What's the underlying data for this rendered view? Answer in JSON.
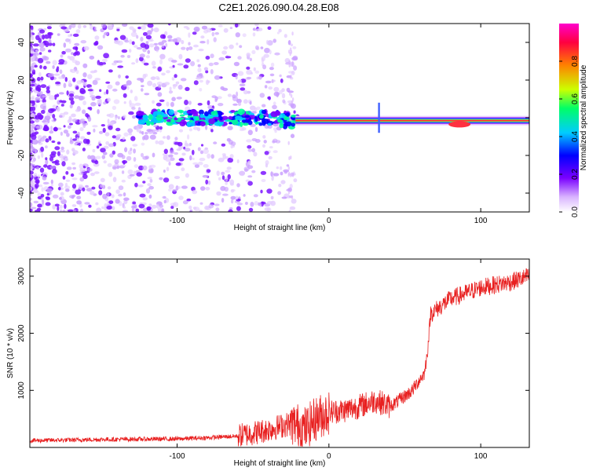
{
  "title": "C2E1.2026.090.04.28.E08",
  "chart_data": [
    {
      "type": "heatmap",
      "xlabel": "Height of straight line (km)",
      "ylabel": "Frequency (Hz)",
      "xlim": [
        -197,
        132
      ],
      "ylim": [
        -50,
        50
      ],
      "xticks": [
        -100,
        0,
        100
      ],
      "yticks": [
        -40,
        -20,
        0,
        20,
        40
      ],
      "colorbar": {
        "label": "Normalized spectral amplitude",
        "range": [
          0,
          1
        ],
        "ticks": [
          0.0,
          0.2,
          0.4,
          0.6,
          0.8
        ],
        "tick_labels": [
          "0.0",
          "0.2",
          "0.4",
          "0.6",
          "0.8"
        ],
        "colors": [
          "#ffffff",
          "#d9b3ff",
          "#7a00ff",
          "#0000ff",
          "#00ccff",
          "#00ff66",
          "#ccff00",
          "#ff8000",
          "#ff0040",
          "#ff00cc"
        ]
      },
      "features": [
        {
          "name": "scattered noise",
          "x_range": [
            -197,
            -25
          ],
          "freq_range": [
            -50,
            50
          ],
          "amplitude": 0.15
        },
        {
          "name": "carrier band",
          "x_range": [
            -125,
            132
          ],
          "center_freq": -2,
          "amplitude": 0.9
        },
        {
          "name": "spike",
          "x": 33,
          "freq_range": [
            -8,
            8
          ],
          "amplitude": 0.3
        }
      ]
    },
    {
      "type": "line",
      "xlabel": "Height of straight line (km)",
      "ylabel": "SNR (10 * v/v)",
      "xlim": [
        -197,
        132
      ],
      "ylim": [
        0,
        3300
      ],
      "xticks": [
        -100,
        0,
        100
      ],
      "yticks": [
        1000,
        2000,
        3000
      ],
      "series": [
        {
          "name": "SNR",
          "color": "#e82020",
          "x": [
            -197,
            -150,
            -100,
            -80,
            -60,
            -45,
            -35,
            -25,
            -20,
            -15,
            -10,
            -5,
            0,
            10,
            20,
            30,
            35,
            40,
            45,
            50,
            55,
            60,
            63,
            65,
            67,
            70,
            80,
            90,
            100,
            110,
            120,
            132
          ],
          "y": [
            120,
            140,
            150,
            170,
            200,
            280,
            350,
            420,
            380,
            330,
            480,
            560,
            620,
            650,
            720,
            820,
            780,
            720,
            800,
            900,
            1000,
            1200,
            1300,
            1700,
            2350,
            2400,
            2600,
            2700,
            2800,
            2850,
            2900,
            3000
          ]
        }
      ]
    }
  ]
}
